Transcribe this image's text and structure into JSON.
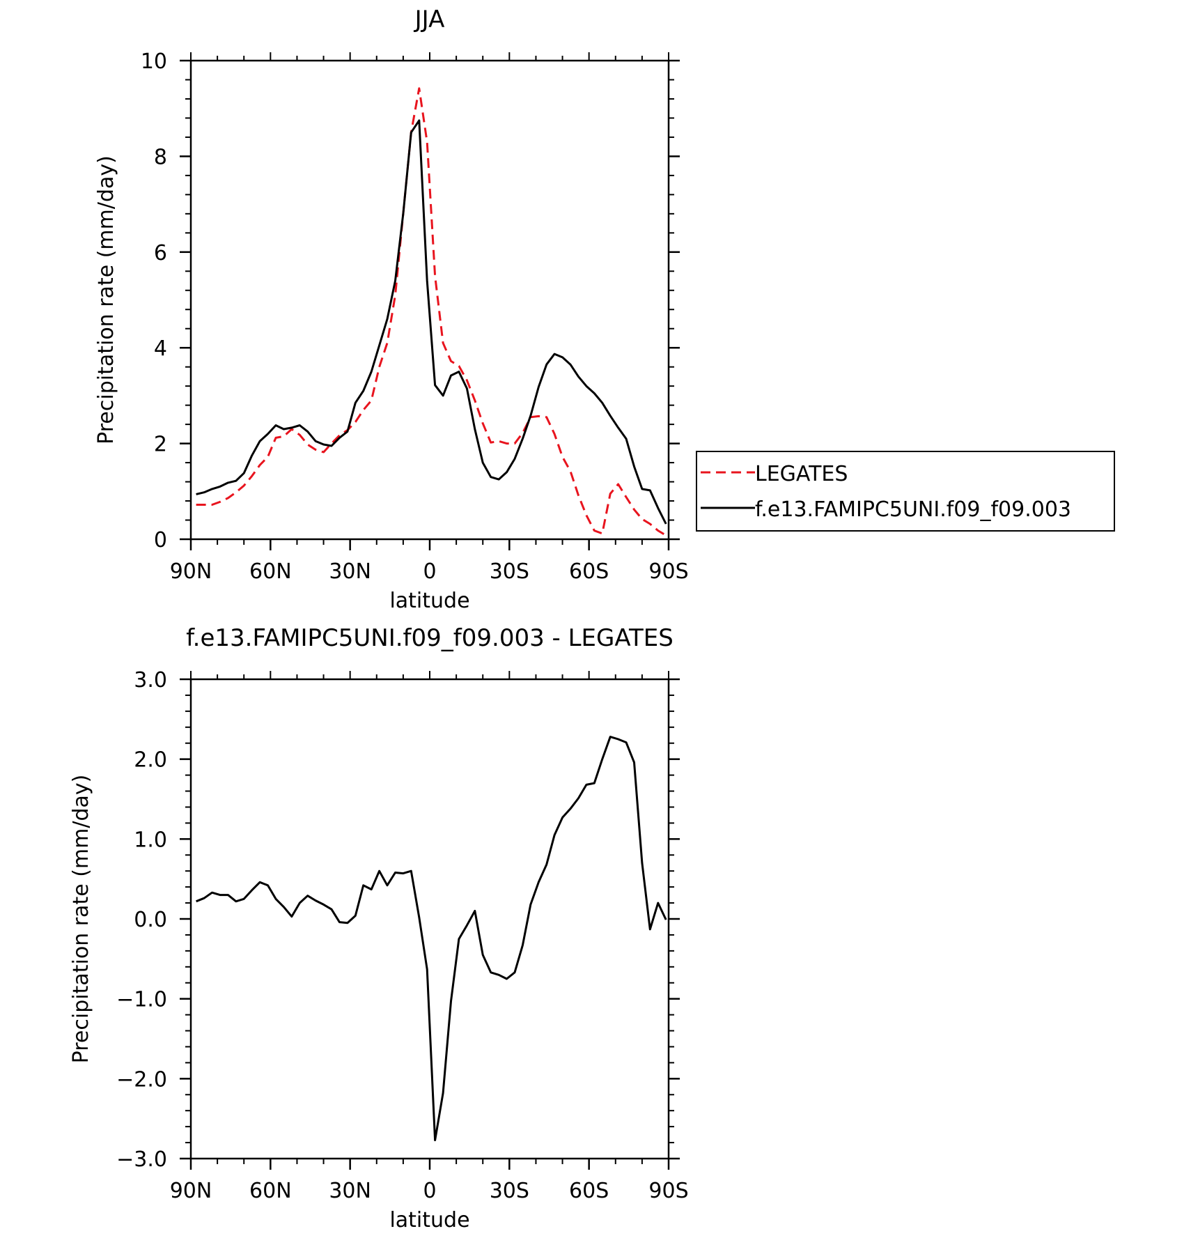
{
  "chart_data": [
    {
      "type": "line",
      "title": "JJA",
      "xlabel": "latitude",
      "ylabel": "Precipitation rate (mm/day)",
      "xlim": [
        90,
        -90
      ],
      "ylim": [
        0,
        10
      ],
      "xticks": [
        90,
        60,
        30,
        0,
        -30,
        -60,
        -90
      ],
      "xtick_labels": [
        "90N",
        "60N",
        "30N",
        "0",
        "30S",
        "60S",
        "90S"
      ],
      "yticks": [
        0,
        2,
        4,
        6,
        8,
        10
      ],
      "ytick_labels": [
        "0",
        "2",
        "4",
        "6",
        "8",
        "10"
      ],
      "grid": false,
      "legend_position": "right",
      "series": [
        {
          "name": "LEGATES",
          "color": "#e8141e",
          "dash": "dashed",
          "x": [
            88,
            85,
            82,
            79,
            76,
            73,
            70,
            67,
            64,
            61,
            58,
            55,
            52,
            49,
            46,
            43,
            40,
            37,
            34,
            31,
            28,
            25,
            22,
            19,
            16,
            13,
            10,
            7,
            4,
            1,
            -2,
            -5,
            -8,
            -11,
            -14,
            -17,
            -20,
            -23,
            -26,
            -29,
            -32,
            -35,
            -38,
            -41,
            -44,
            -47,
            -50,
            -53,
            -56,
            -59,
            -62,
            -65,
            -68,
            -71,
            -74,
            -77,
            -80,
            -83,
            -86,
            -89
          ],
          "y": [
            0.72,
            0.72,
            0.72,
            0.78,
            0.86,
            0.98,
            1.12,
            1.32,
            1.55,
            1.72,
            2.12,
            2.15,
            2.3,
            2.18,
            1.98,
            1.87,
            1.82,
            2.0,
            2.17,
            2.28,
            2.45,
            2.7,
            2.9,
            3.6,
            4.1,
            5.1,
            6.8,
            8.5,
            9.42,
            8.3,
            5.5,
            4.1,
            3.72,
            3.62,
            3.32,
            2.9,
            2.42,
            2.02,
            2.05,
            2.0,
            2.0,
            2.22,
            2.55,
            2.57,
            2.55,
            2.2,
            1.72,
            1.42,
            0.92,
            0.5,
            0.18,
            0.12,
            0.95,
            1.15,
            0.88,
            0.62,
            0.42,
            0.32,
            0.18,
            0.08
          ]
        },
        {
          "name": "f.e13.FAMIPC5UNI.f09_f09.003",
          "color": "#000000",
          "dash": "solid",
          "x": [
            88,
            85,
            82,
            79,
            76,
            73,
            70,
            67,
            64,
            61,
            58,
            55,
            52,
            49,
            46,
            43,
            40,
            37,
            34,
            31,
            28,
            25,
            22,
            19,
            16,
            13,
            10,
            7,
            4,
            1,
            -2,
            -5,
            -8,
            -11,
            -14,
            -17,
            -20,
            -23,
            -26,
            -29,
            -32,
            -35,
            -38,
            -41,
            -44,
            -47,
            -50,
            -53,
            -56,
            -59,
            -62,
            -65,
            -68,
            -71,
            -74,
            -77,
            -80,
            -83,
            -86,
            -89
          ],
          "y": [
            0.94,
            0.98,
            1.05,
            1.1,
            1.18,
            1.22,
            1.38,
            1.75,
            2.05,
            2.2,
            2.38,
            2.3,
            2.33,
            2.38,
            2.25,
            2.05,
            1.98,
            1.95,
            2.12,
            2.25,
            2.85,
            3.1,
            3.5,
            4.05,
            4.6,
            5.4,
            6.8,
            8.5,
            8.75,
            5.4,
            3.22,
            3.0,
            3.42,
            3.5,
            3.15,
            2.3,
            1.6,
            1.3,
            1.25,
            1.4,
            1.68,
            2.1,
            2.58,
            3.18,
            3.65,
            3.87,
            3.8,
            3.65,
            3.4,
            3.2,
            3.05,
            2.85,
            2.58,
            2.33,
            2.1,
            1.52,
            1.05,
            1.02,
            0.65,
            0.32
          ]
        }
      ]
    },
    {
      "type": "line",
      "title": "f.e13.FAMIPC5UNI.f09_f09.003 - LEGATES",
      "xlabel": "latitude",
      "ylabel": "Precipitation rate (mm/day)",
      "xlim": [
        90,
        -90
      ],
      "ylim": [
        -3.0,
        3.0
      ],
      "xticks": [
        90,
        60,
        30,
        0,
        -30,
        -60,
        -90
      ],
      "xtick_labels": [
        "90N",
        "60N",
        "30N",
        "0",
        "30S",
        "60S",
        "90S"
      ],
      "yticks": [
        -3.0,
        -2.0,
        -1.0,
        0.0,
        1.0,
        2.0,
        3.0
      ],
      "ytick_labels": [
        "−3.0",
        "−2.0",
        "−1.0",
        "0.0",
        "1.0",
        "2.0",
        "3.0"
      ],
      "grid": false,
      "series": [
        {
          "color": "#000000",
          "dash": "solid",
          "x": [
            88,
            85,
            82,
            79,
            76,
            73,
            70,
            67,
            64,
            61,
            58,
            55,
            52,
            49,
            46,
            43,
            40,
            37,
            34,
            31,
            28,
            25,
            22,
            19,
            16,
            13,
            10,
            7,
            4,
            1,
            -2,
            -5,
            -8,
            -11,
            -14,
            -17,
            -20,
            -23,
            -26,
            -29,
            -32,
            -35,
            -38,
            -41,
            -44,
            -47,
            -50,
            -53,
            -56,
            -59,
            -62,
            -65,
            -68,
            -71,
            -74,
            -77,
            -80,
            -83,
            -86,
            -89
          ],
          "y": [
            0.22,
            0.26,
            0.33,
            0.3,
            0.3,
            0.22,
            0.25,
            0.36,
            0.46,
            0.42,
            0.25,
            0.15,
            0.03,
            0.2,
            0.29,
            0.23,
            0.18,
            0.12,
            -0.04,
            -0.05,
            0.04,
            0.42,
            0.37,
            0.6,
            0.42,
            0.58,
            0.57,
            0.6,
            0.02,
            -0.63,
            -2.77,
            -2.18,
            -1.03,
            -0.25,
            -0.08,
            0.1,
            -0.45,
            -0.67,
            -0.7,
            -0.75,
            -0.67,
            -0.33,
            0.18,
            0.46,
            0.68,
            1.05,
            1.27,
            1.38,
            1.51,
            1.68,
            1.7,
            2.0,
            2.28,
            2.25,
            2.21,
            1.96,
            0.7,
            -0.13,
            0.2,
            -0.01
          ]
        }
      ]
    }
  ]
}
